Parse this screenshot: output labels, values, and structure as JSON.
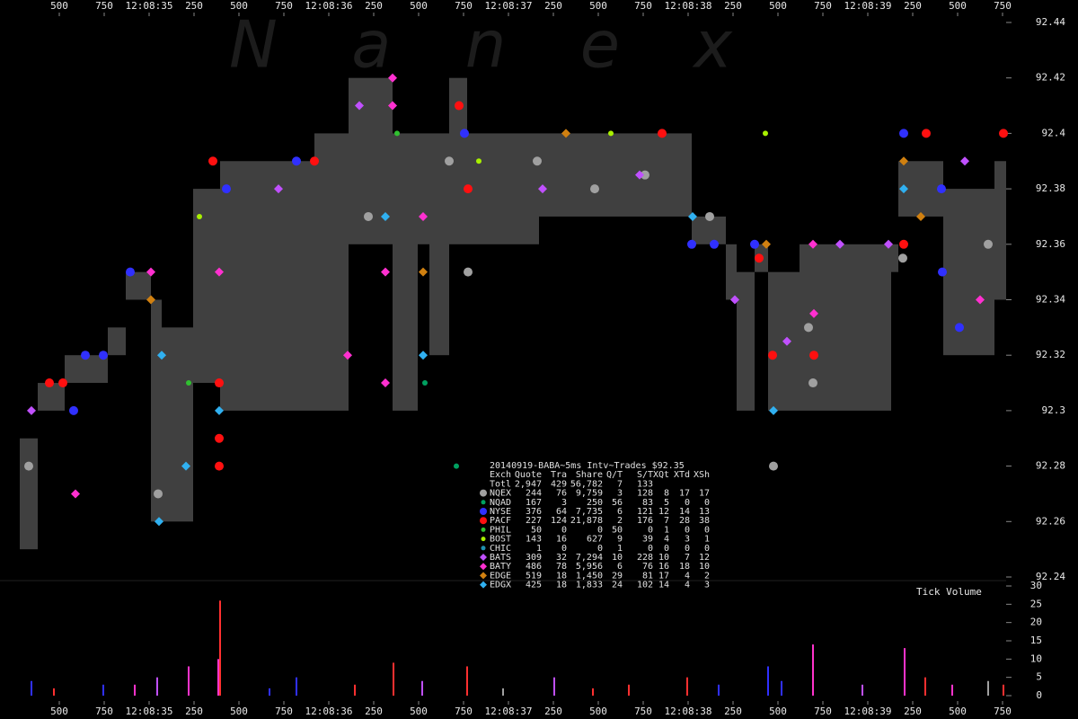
{
  "chart_data": {
    "type": "scatter",
    "watermark": "Nanex",
    "xlim": [
      -0.83,
      4.77
    ],
    "ylim": [
      92.24,
      92.44
    ],
    "xticks": [
      {
        "value": -0.5,
        "label": "500"
      },
      {
        "value": -0.25,
        "label": "750"
      },
      {
        "value": 0,
        "label": "12:08:35"
      },
      {
        "value": 0.25,
        "label": "250"
      },
      {
        "value": 0.5,
        "label": "500"
      },
      {
        "value": 0.75,
        "label": "750"
      },
      {
        "value": 1,
        "label": "12:08:36"
      },
      {
        "value": 1.25,
        "label": "250"
      },
      {
        "value": 1.5,
        "label": "500"
      },
      {
        "value": 1.75,
        "label": "750"
      },
      {
        "value": 2,
        "label": "12:08:37"
      },
      {
        "value": 2.25,
        "label": "250"
      },
      {
        "value": 2.5,
        "label": "500"
      },
      {
        "value": 2.75,
        "label": "750"
      },
      {
        "value": 3,
        "label": "12:08:38"
      },
      {
        "value": 3.25,
        "label": "250"
      },
      {
        "value": 3.5,
        "label": "500"
      },
      {
        "value": 3.75,
        "label": "750"
      },
      {
        "value": 4,
        "label": "12:08:39"
      },
      {
        "value": 4.25,
        "label": "250"
      },
      {
        "value": 4.5,
        "label": "500"
      },
      {
        "value": 4.75,
        "label": "750"
      }
    ],
    "yticks": [
      92.24,
      92.26,
      92.28,
      92.3,
      92.32,
      92.34,
      92.36,
      92.38,
      92.4,
      92.42,
      92.44
    ],
    "spread": {
      "color": "#404040",
      "x": [
        -0.72,
        -0.62,
        -0.47,
        -0.23,
        -0.13,
        0.01,
        0.07,
        0.245,
        0.395,
        0.92,
        1.11,
        1.355,
        1.495,
        1.56,
        1.67,
        1.77,
        2.17,
        3.02,
        3.21,
        3.27,
        3.37,
        3.445,
        3.62,
        4.13,
        4.17,
        4.42,
        4.705
      ],
      "bid": [
        92.25,
        92.3,
        92.31,
        92.32,
        92.34,
        92.26,
        92.26,
        92.31,
        92.3,
        92.3,
        92.36,
        92.3,
        92.36,
        92.32,
        92.36,
        92.36,
        92.37,
        92.36,
        92.34,
        92.3,
        92.35,
        92.3,
        92.3,
        92.35,
        92.37,
        92.32,
        92.34
      ],
      "ask": [
        92.29,
        92.31,
        92.32,
        92.33,
        92.35,
        92.34,
        92.33,
        92.38,
        92.39,
        92.4,
        92.42,
        92.4,
        92.4,
        92.4,
        92.42,
        92.4,
        92.4,
        92.37,
        92.36,
        92.35,
        92.36,
        92.35,
        92.36,
        92.36,
        92.39,
        92.38,
        92.39
      ]
    },
    "series": [
      {
        "name": "NQEX",
        "color": "#a0a0a0",
        "marker": "circle",
        "x": [
          -0.67,
          0.05,
          1.22,
          1.67,
          2.16,
          2.48,
          2.76,
          3.12,
          3.67,
          3.695,
          4.195,
          4.67,
          3.475,
          1.775
        ],
        "y": [
          92.28,
          92.27,
          92.37,
          92.39,
          92.39,
          92.38,
          92.385,
          92.37,
          92.33,
          92.31,
          92.355,
          92.36,
          92.28,
          92.35
        ]
      },
      {
        "name": "NQAD",
        "color": "#00a060",
        "marker": "dot",
        "x": [
          1.71,
          1.535
        ],
        "y": [
          92.28,
          92.31
        ]
      },
      {
        "name": "NYSE",
        "color": "#3030ff",
        "marker": "circle",
        "x": [
          -0.105,
          -0.42,
          -0.355,
          -0.255,
          0.43,
          0.82,
          1.755,
          3.02,
          3.145,
          3.37,
          4.2,
          4.415,
          4.41,
          4.51
        ],
        "y": [
          92.35,
          92.3,
          92.32,
          92.32,
          92.38,
          92.39,
          92.4,
          92.36,
          92.36,
          92.36,
          92.4,
          92.35,
          92.38,
          92.33
        ]
      },
      {
        "name": "PACF",
        "color": "#ff1010",
        "marker": "circle",
        "x": [
          -0.555,
          -0.48,
          0.355,
          0.39,
          0.39,
          0.39,
          0.92,
          1.775,
          1.725,
          2.855,
          3.7,
          4.2,
          4.325,
          4.755,
          3.47,
          3.395
        ],
        "y": [
          92.31,
          92.31,
          92.39,
          92.31,
          92.28,
          92.29,
          92.39,
          92.38,
          92.41,
          92.4,
          92.32,
          92.36,
          92.4,
          92.4,
          92.32,
          92.355
        ]
      },
      {
        "name": "PHIL",
        "color": "#30c030",
        "marker": "dot",
        "x": [
          0.22,
          1.38
        ],
        "y": [
          92.31,
          92.4
        ]
      },
      {
        "name": "BOST",
        "color": "#a8f000",
        "marker": "dot",
        "x": [
          0.28,
          1.835,
          3.43,
          2.57
        ],
        "y": [
          92.37,
          92.39,
          92.4,
          92.4
        ]
      },
      {
        "name": "CHIC",
        "color": "#2090b0",
        "marker": "dot",
        "x": [],
        "y": []
      },
      {
        "name": "BATS",
        "color": "#c050ff",
        "marker": "diamond",
        "x": [
          -0.655,
          0.72,
          1.17,
          2.19,
          2.73,
          3.26,
          3.55,
          3.845,
          4.54,
          4.115
        ],
        "y": [
          92.3,
          92.38,
          92.41,
          92.38,
          92.385,
          92.34,
          92.325,
          92.36,
          92.39,
          92.36
        ]
      },
      {
        "name": "BATY",
        "color": "#ff30d0",
        "marker": "diamond",
        "x": [
          0.01,
          0.39,
          1.355,
          1.355,
          1.525,
          1.315,
          1.315,
          3.695,
          3.7,
          4.625,
          1.105,
          -0.41
        ],
        "y": [
          92.35,
          92.35,
          92.42,
          92.41,
          92.37,
          92.35,
          92.31,
          92.36,
          92.335,
          92.34,
          92.32,
          92.27
        ]
      },
      {
        "name": "EDGE",
        "color": "#d08010",
        "marker": "diamond",
        "x": [
          0.01,
          1.525,
          2.32,
          3.435,
          4.2,
          4.295
        ],
        "y": [
          92.34,
          92.35,
          92.4,
          92.36,
          92.39,
          92.37
        ]
      },
      {
        "name": "EDGX",
        "color": "#30b0f0",
        "marker": "diamond",
        "x": [
          0.39,
          0.205,
          0.055,
          1.315,
          1.525,
          3.025,
          3.475,
          4.2,
          0.07
        ],
        "y": [
          92.3,
          92.28,
          92.26,
          92.37,
          92.32,
          92.37,
          92.3,
          92.38,
          92.32
        ]
      }
    ],
    "volume": {
      "label": "Tick Volume",
      "ylim": [
        0,
        30
      ],
      "yticks": [
        0,
        5,
        10,
        15,
        20,
        25,
        30
      ],
      "x": [
        0.395,
        0.385,
        1.36,
        1.77,
        3.695,
        4.205,
        3.445,
        0.22,
        0.045,
        -0.255,
        -0.655,
        0.82,
        2.255,
        2.995,
        2.67,
        4.32,
        4.67,
        4.755,
        -0.53,
        1.52,
        3.97,
        3.17,
        0.67,
        1.145,
        1.97,
        2.47,
        3.52,
        4.47,
        -0.08
      ],
      "values": [
        26,
        10,
        9,
        8,
        14,
        13,
        8,
        8,
        5,
        3,
        4,
        5,
        5,
        5,
        3,
        5,
        4,
        3,
        2,
        4,
        3,
        3,
        2,
        3,
        2,
        2,
        4,
        3,
        3
      ],
      "colors": [
        "#ff3030",
        "#ff33cc",
        "#ff3030",
        "#ff3030",
        "#ff33cc",
        "#ff33cc",
        "#3030ff",
        "#ff33cc",
        "#c050ff",
        "#3030ff",
        "#3030ff",
        "#3030ff",
        "#c050ff",
        "#ff3030",
        "#ff3030",
        "#ff3030",
        "#a0a0a0",
        "#ff3030",
        "#ff3030",
        "#c050ff",
        "#c050ff",
        "#3030ff",
        "#3030ff",
        "#ff3030",
        "#a0a0a0",
        "#ff3030",
        "#3030ff",
        "#ff33cc",
        "#ff33cc"
      ]
    }
  },
  "stats_table": {
    "title": "20140919-BABA~5ms Intv~Trades $92.35",
    "columns": [
      "Exch",
      "Quote",
      "Tra",
      "Share",
      "Q/T",
      "S/T",
      "XQt",
      "XTd",
      "XSh"
    ],
    "total_label": "Totl",
    "totals": [
      "2,947",
      "429",
      "56,782",
      "7",
      "133"
    ],
    "rows": [
      [
        "244",
        "76",
        "9,759",
        "3",
        "128",
        "8",
        "17",
        "17"
      ],
      [
        "167",
        "3",
        "250",
        "56",
        "83",
        "5",
        "0",
        "0"
      ],
      [
        "376",
        "64",
        "7,735",
        "6",
        "121",
        "12",
        "14",
        "13"
      ],
      [
        "227",
        "124",
        "21,878",
        "2",
        "176",
        "7",
        "28",
        "38"
      ],
      [
        "50",
        "0",
        "0",
        "50",
        "0",
        "1",
        "0",
        "0"
      ],
      [
        "143",
        "16",
        "627",
        "9",
        "39",
        "4",
        "3",
        "1"
      ],
      [
        "1",
        "0",
        "0",
        "1",
        "0",
        "0",
        "0",
        "0"
      ],
      [
        "309",
        "32",
        "7,294",
        "10",
        "228",
        "10",
        "7",
        "12"
      ],
      [
        "486",
        "78",
        "5,956",
        "6",
        "76",
        "16",
        "18",
        "10"
      ],
      [
        "519",
        "18",
        "1,450",
        "29",
        "81",
        "17",
        "4",
        "2"
      ],
      [
        "425",
        "18",
        "1,833",
        "24",
        "102",
        "14",
        "4",
        "3"
      ]
    ]
  }
}
